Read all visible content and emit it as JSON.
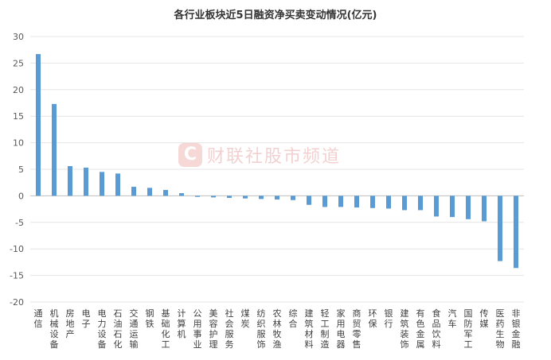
{
  "chart_data": {
    "type": "bar",
    "title": "各行业板块近5日融资净买卖变动情况(亿元)",
    "ylim": [
      -20,
      30
    ],
    "yticks": [
      30,
      25,
      20,
      15,
      10,
      5,
      0,
      -5,
      -10,
      -15,
      -20
    ],
    "grid": true,
    "bar_color": "#5b9bd5",
    "categories": [
      "通信",
      "机械设备",
      "房地产",
      "电子",
      "电力设备",
      "石油石化",
      "交通运输",
      "钢铁",
      "基础化工",
      "计算机",
      "公用事业",
      "美容护理",
      "社会服务",
      "煤炭",
      "纺织服饰",
      "农林牧渔",
      "综合",
      "建筑材料",
      "轻工制造",
      "家用电器",
      "商贸零售",
      "环保",
      "银行",
      "建筑装饰",
      "有色金属",
      "食品饮料",
      "汽车",
      "国防军工",
      "传媒",
      "医药生物",
      "非银金融"
    ],
    "values": [
      26.7,
      17.3,
      5.6,
      5.3,
      4.5,
      4.2,
      1.7,
      1.5,
      1.1,
      0.5,
      -0.2,
      -0.3,
      -0.4,
      -0.5,
      -0.6,
      -0.7,
      -0.8,
      -1.7,
      -2.1,
      -2.1,
      -2.2,
      -2.3,
      -2.4,
      -2.7,
      -2.7,
      -3.9,
      -4.0,
      -4.4,
      -4.8,
      -12.3,
      -13.6
    ]
  },
  "watermark": {
    "logo_char": "C",
    "text": "财联社股市频道"
  }
}
